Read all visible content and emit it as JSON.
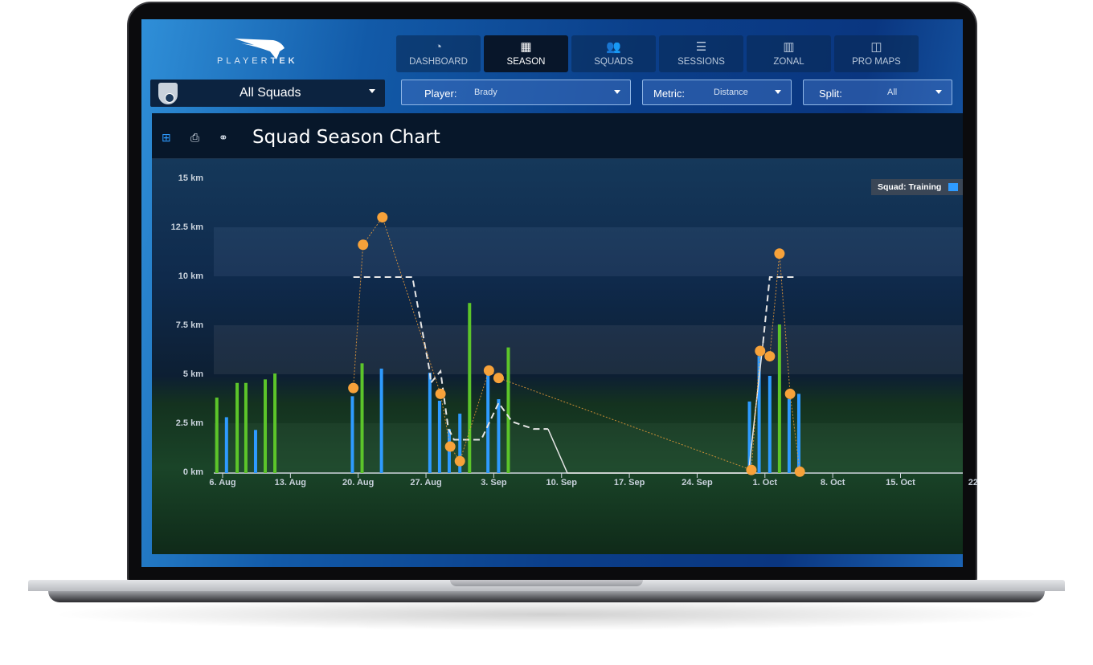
{
  "app": {
    "brand_left": "PLAYER",
    "brand_right": "TEK"
  },
  "nav": [
    {
      "label": "DASHBOARD",
      "icon": "gauge-icon",
      "glyph": "◔",
      "active": false
    },
    {
      "label": "SEASON",
      "icon": "calendar-icon",
      "glyph": "▦",
      "active": true
    },
    {
      "label": "SQUADS",
      "icon": "users-icon",
      "glyph": "👥",
      "active": false
    },
    {
      "label": "SESSIONS",
      "icon": "list-icon",
      "glyph": "☰",
      "active": false
    },
    {
      "label": "ZONAL",
      "icon": "bar-chart-icon",
      "glyph": "▥",
      "active": false
    },
    {
      "label": "PRO MAPS",
      "icon": "columns-icon",
      "glyph": "◫",
      "active": false
    }
  ],
  "filters": {
    "squad": "All Squads",
    "player_label": "Player:",
    "player_value": "Brady",
    "metric_label": "Metric:",
    "metric_value": "Distance",
    "split_label": "Split:",
    "split_value": "All"
  },
  "panel": {
    "title": "Squad Season Chart"
  },
  "chart_data": {
    "type": "bar",
    "title": "Squad Season Chart",
    "ylabel": "Distance",
    "ylim": [
      0,
      15
    ],
    "yticks": [
      "0 km",
      "2.5 km",
      "5 km",
      "7.5 km",
      "10 km",
      "12.5 km",
      "15 km"
    ],
    "xticks": [
      "6. Aug",
      "13. Aug",
      "20. Aug",
      "27. Aug",
      "3. Sep",
      "10. Sep",
      "17. Sep",
      "24. Sep",
      "1. Oct",
      "8. Oct",
      "15. Oct",
      "22"
    ],
    "x_unit": "days since 6 Aug",
    "legend": {
      "label": "Squad: Training",
      "color": "#2e9bff",
      "placement": "top-right"
    },
    "colors": {
      "training": "#2e9bff",
      "match": "#5cc52a",
      "player": "#f7a23a",
      "avg": "#e6e6e6"
    },
    "bars": [
      {
        "day": -0.6,
        "value": 3.85,
        "kind": "match"
      },
      {
        "day": 0.4,
        "value": 2.85,
        "kind": "training"
      },
      {
        "day": 1.5,
        "value": 4.6,
        "kind": "match"
      },
      {
        "day": 2.4,
        "value": 4.6,
        "kind": "match"
      },
      {
        "day": 3.4,
        "value": 2.2,
        "kind": "training"
      },
      {
        "day": 4.4,
        "value": 4.78,
        "kind": "match"
      },
      {
        "day": 5.4,
        "value": 5.08,
        "kind": "match"
      },
      {
        "day": 13.4,
        "value": 3.92,
        "kind": "training"
      },
      {
        "day": 14.4,
        "value": 5.6,
        "kind": "match"
      },
      {
        "day": 16.4,
        "value": 5.33,
        "kind": "training"
      },
      {
        "day": 21.4,
        "value": 5.12,
        "kind": "training"
      },
      {
        "day": 22.4,
        "value": 3.69,
        "kind": "training"
      },
      {
        "day": 23.4,
        "value": 2.24,
        "kind": "training"
      },
      {
        "day": 24.5,
        "value": 3.03,
        "kind": "training"
      },
      {
        "day": 25.5,
        "value": 8.68,
        "kind": "match"
      },
      {
        "day": 27.4,
        "value": 5.01,
        "kind": "training"
      },
      {
        "day": 28.5,
        "value": 3.77,
        "kind": "training"
      },
      {
        "day": 29.5,
        "value": 6.41,
        "kind": "match"
      },
      {
        "day": 54.4,
        "value": 3.65,
        "kind": "training"
      },
      {
        "day": 55.4,
        "value": 5.97,
        "kind": "training"
      },
      {
        "day": 56.5,
        "value": 4.96,
        "kind": "training"
      },
      {
        "day": 57.5,
        "value": 7.58,
        "kind": "match"
      },
      {
        "day": 58.5,
        "value": 3.78,
        "kind": "training"
      },
      {
        "day": 59.5,
        "value": 4.04,
        "kind": "training"
      }
    ],
    "player_points": [
      [
        13.5,
        4.34
      ],
      [
        14.5,
        11.65
      ],
      [
        16.5,
        13.05
      ],
      [
        22.5,
        4.04
      ],
      [
        23.5,
        1.35
      ],
      [
        24.5,
        0.61
      ],
      [
        27.5,
        5.23
      ],
      [
        28.5,
        4.85
      ],
      [
        54.6,
        0.16
      ],
      [
        55.5,
        6.23
      ],
      [
        56.5,
        5.96
      ],
      [
        57.5,
        11.2
      ],
      [
        58.6,
        4.04
      ],
      [
        59.6,
        0.07
      ]
    ],
    "avg_dashed": [
      [
        [
          13.5,
          10
        ],
        [
          19.6,
          10
        ],
        [
          21.4,
          5.15
        ],
        [
          21.5,
          4.6
        ],
        [
          22.5,
          5.2
        ],
        [
          23.3,
          2.28
        ],
        [
          23.9,
          1.7
        ],
        [
          26.7,
          1.7
        ],
        [
          28.5,
          3.58
        ],
        [
          29.9,
          2.62
        ],
        [
          32.1,
          2.25
        ],
        [
          33.6,
          2.25
        ]
      ],
      [
        [
          55.8,
          6.64
        ],
        [
          56.5,
          10
        ],
        [
          59.2,
          10
        ]
      ]
    ],
    "avg_solid": [
      [
        33.6,
        2.25
      ],
      [
        35.6,
        0
      ],
      [
        54.3,
        0
      ],
      [
        55.8,
        6.64
      ]
    ],
    "baseline_end_day": 76
  }
}
